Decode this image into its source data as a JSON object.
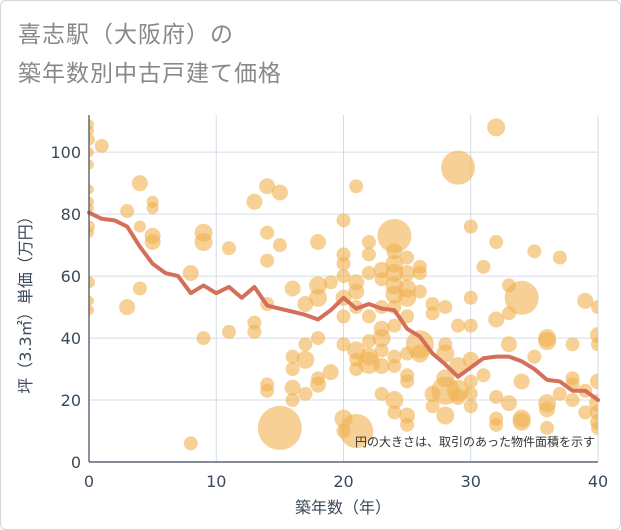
{
  "chart_data": {
    "type": "scatter",
    "title_line1": "喜志駅（大阪府）の",
    "title_line2": "築年数別中古戸建て価格",
    "xlabel": "築年数（年）",
    "ylabel": "坪（3.3㎡）単価（万円）",
    "xlim": [
      0,
      40
    ],
    "ylim": [
      0,
      112
    ],
    "xticks": [
      0,
      10,
      20,
      30,
      40
    ],
    "yticks": [
      0,
      20,
      40,
      60,
      80,
      100
    ],
    "note": "円の大きさは、取引のあった物件面積を示す",
    "colors": {
      "bubble": "#f0b352",
      "line": "#d4705a",
      "grid": "#d5dce6"
    },
    "trend": {
      "x": [
        0,
        1,
        2,
        3,
        4,
        5,
        6,
        7,
        8,
        9,
        10,
        11,
        12,
        13,
        14,
        15,
        16,
        17,
        18,
        19,
        20,
        21,
        22,
        23,
        24,
        25,
        26,
        27,
        28,
        29,
        30,
        31,
        32,
        33,
        34,
        35,
        36,
        37,
        38,
        39,
        40
      ],
      "y": [
        80.5,
        78.5,
        78,
        76,
        69.5,
        64,
        61,
        60,
        54.5,
        57,
        54.5,
        56.5,
        53,
        56.5,
        50.5,
        49.5,
        48.5,
        47.5,
        46,
        49,
        53,
        49.5,
        51,
        49.5,
        49,
        43,
        40.5,
        35,
        31.5,
        27.5,
        30.5,
        33.5,
        34,
        34,
        32.5,
        30,
        26.5,
        26,
        23,
        23,
        20
      ]
    },
    "points": [
      {
        "x": 0,
        "y": 109,
        "s": 5
      },
      {
        "x": 0,
        "y": 107,
        "s": 5
      },
      {
        "x": 0,
        "y": 104,
        "s": 6
      },
      {
        "x": 0,
        "y": 100,
        "s": 5
      },
      {
        "x": 0,
        "y": 96,
        "s": 5
      },
      {
        "x": 0,
        "y": 88,
        "s": 5
      },
      {
        "x": 0,
        "y": 84,
        "s": 5
      },
      {
        "x": 0,
        "y": 82,
        "s": 5
      },
      {
        "x": 0,
        "y": 76,
        "s": 6
      },
      {
        "x": 0,
        "y": 74,
        "s": 5
      },
      {
        "x": 0,
        "y": 58,
        "s": 6
      },
      {
        "x": 0,
        "y": 52,
        "s": 5
      },
      {
        "x": 0,
        "y": 49,
        "s": 5
      },
      {
        "x": 1,
        "y": 102,
        "s": 7
      },
      {
        "x": 3,
        "y": 81,
        "s": 7
      },
      {
        "x": 3,
        "y": 50,
        "s": 8
      },
      {
        "x": 4,
        "y": 90,
        "s": 8
      },
      {
        "x": 4,
        "y": 76,
        "s": 6
      },
      {
        "x": 4,
        "y": 56,
        "s": 7
      },
      {
        "x": 5,
        "y": 84,
        "s": 6
      },
      {
        "x": 5,
        "y": 82,
        "s": 6
      },
      {
        "x": 5,
        "y": 73,
        "s": 8
      },
      {
        "x": 5,
        "y": 71,
        "s": 8
      },
      {
        "x": 8,
        "y": 61,
        "s": 8
      },
      {
        "x": 8,
        "y": 6,
        "s": 7
      },
      {
        "x": 9,
        "y": 74,
        "s": 9
      },
      {
        "x": 9,
        "y": 71,
        "s": 9
      },
      {
        "x": 9,
        "y": 40,
        "s": 7
      },
      {
        "x": 11,
        "y": 69,
        "s": 7
      },
      {
        "x": 11,
        "y": 42,
        "s": 7
      },
      {
        "x": 13,
        "y": 84,
        "s": 8
      },
      {
        "x": 13,
        "y": 45,
        "s": 7
      },
      {
        "x": 13,
        "y": 42,
        "s": 7
      },
      {
        "x": 14,
        "y": 89,
        "s": 8
      },
      {
        "x": 14,
        "y": 74,
        "s": 7
      },
      {
        "x": 14,
        "y": 65,
        "s": 7
      },
      {
        "x": 14,
        "y": 51,
        "s": 7
      },
      {
        "x": 14,
        "y": 25,
        "s": 7
      },
      {
        "x": 14,
        "y": 23,
        "s": 7
      },
      {
        "x": 15,
        "y": 87,
        "s": 8
      },
      {
        "x": 15,
        "y": 70,
        "s": 7
      },
      {
        "x": 15,
        "y": 11,
        "s": 22
      },
      {
        "x": 16,
        "y": 56,
        "s": 8
      },
      {
        "x": 16,
        "y": 34,
        "s": 7
      },
      {
        "x": 16,
        "y": 30,
        "s": 7
      },
      {
        "x": 16,
        "y": 24,
        "s": 8
      },
      {
        "x": 16,
        "y": 20,
        "s": 7
      },
      {
        "x": 17,
        "y": 51,
        "s": 8
      },
      {
        "x": 17,
        "y": 38,
        "s": 7
      },
      {
        "x": 17,
        "y": 33,
        "s": 9
      },
      {
        "x": 17,
        "y": 22,
        "s": 7
      },
      {
        "x": 18,
        "y": 71,
        "s": 8
      },
      {
        "x": 18,
        "y": 57,
        "s": 9
      },
      {
        "x": 18,
        "y": 53,
        "s": 9
      },
      {
        "x": 18,
        "y": 40,
        "s": 7
      },
      {
        "x": 18,
        "y": 27,
        "s": 7
      },
      {
        "x": 18,
        "y": 25,
        "s": 8
      },
      {
        "x": 19,
        "y": 58,
        "s": 7
      },
      {
        "x": 19,
        "y": 29,
        "s": 8
      },
      {
        "x": 20,
        "y": 78,
        "s": 7
      },
      {
        "x": 20,
        "y": 67,
        "s": 7
      },
      {
        "x": 20,
        "y": 64,
        "s": 7
      },
      {
        "x": 20,
        "y": 60,
        "s": 7
      },
      {
        "x": 20,
        "y": 53,
        "s": 8
      },
      {
        "x": 20,
        "y": 47,
        "s": 7
      },
      {
        "x": 20,
        "y": 38,
        "s": 7
      },
      {
        "x": 20,
        "y": 14,
        "s": 9
      },
      {
        "x": 20,
        "y": 10,
        "s": 7
      },
      {
        "x": 21,
        "y": 89,
        "s": 7
      },
      {
        "x": 21,
        "y": 58,
        "s": 8
      },
      {
        "x": 21,
        "y": 55,
        "s": 8
      },
      {
        "x": 21,
        "y": 50,
        "s": 7
      },
      {
        "x": 21,
        "y": 36,
        "s": 9
      },
      {
        "x": 21,
        "y": 33,
        "s": 7
      },
      {
        "x": 21,
        "y": 30,
        "s": 7
      },
      {
        "x": 21,
        "y": 10,
        "s": 17
      },
      {
        "x": 22,
        "y": 71,
        "s": 7
      },
      {
        "x": 22,
        "y": 67,
        "s": 7
      },
      {
        "x": 22,
        "y": 61,
        "s": 7
      },
      {
        "x": 22,
        "y": 47,
        "s": 7
      },
      {
        "x": 22,
        "y": 39,
        "s": 7
      },
      {
        "x": 22,
        "y": 34,
        "s": 9
      },
      {
        "x": 22,
        "y": 32,
        "s": 11
      },
      {
        "x": 23,
        "y": 62,
        "s": 8
      },
      {
        "x": 23,
        "y": 59,
        "s": 7
      },
      {
        "x": 23,
        "y": 50,
        "s": 7
      },
      {
        "x": 23,
        "y": 43,
        "s": 8
      },
      {
        "x": 23,
        "y": 40,
        "s": 9
      },
      {
        "x": 23,
        "y": 36,
        "s": 7
      },
      {
        "x": 23,
        "y": 31,
        "s": 8
      },
      {
        "x": 23,
        "y": 22,
        "s": 7
      },
      {
        "x": 24,
        "y": 73,
        "s": 17
      },
      {
        "x": 24,
        "y": 68,
        "s": 8
      },
      {
        "x": 24,
        "y": 64,
        "s": 9
      },
      {
        "x": 24,
        "y": 61,
        "s": 9
      },
      {
        "x": 24,
        "y": 57,
        "s": 9
      },
      {
        "x": 24,
        "y": 54,
        "s": 9
      },
      {
        "x": 24,
        "y": 50,
        "s": 7
      },
      {
        "x": 24,
        "y": 44,
        "s": 7
      },
      {
        "x": 24,
        "y": 34,
        "s": 7
      },
      {
        "x": 24,
        "y": 31,
        "s": 7
      },
      {
        "x": 24,
        "y": 20,
        "s": 9
      },
      {
        "x": 24,
        "y": 16,
        "s": 7
      },
      {
        "x": 25,
        "y": 66,
        "s": 7
      },
      {
        "x": 25,
        "y": 61,
        "s": 8
      },
      {
        "x": 25,
        "y": 56,
        "s": 9
      },
      {
        "x": 25,
        "y": 53,
        "s": 9
      },
      {
        "x": 25,
        "y": 47,
        "s": 7
      },
      {
        "x": 25,
        "y": 35,
        "s": 7
      },
      {
        "x": 25,
        "y": 28,
        "s": 7
      },
      {
        "x": 25,
        "y": 26,
        "s": 7
      },
      {
        "x": 25,
        "y": 15,
        "s": 8
      },
      {
        "x": 25,
        "y": 12,
        "s": 7
      },
      {
        "x": 26,
        "y": 63,
        "s": 7
      },
      {
        "x": 26,
        "y": 61,
        "s": 7
      },
      {
        "x": 26,
        "y": 55,
        "s": 7
      },
      {
        "x": 26,
        "y": 38,
        "s": 14
      },
      {
        "x": 26,
        "y": 35,
        "s": 9
      },
      {
        "x": 27,
        "y": 51,
        "s": 7
      },
      {
        "x": 27,
        "y": 48,
        "s": 7
      },
      {
        "x": 27,
        "y": 22,
        "s": 8
      },
      {
        "x": 27,
        "y": 18,
        "s": 7
      },
      {
        "x": 28,
        "y": 50,
        "s": 7
      },
      {
        "x": 28,
        "y": 38,
        "s": 7
      },
      {
        "x": 28,
        "y": 35,
        "s": 9
      },
      {
        "x": 28,
        "y": 27,
        "s": 9
      },
      {
        "x": 28,
        "y": 23,
        "s": 14
      },
      {
        "x": 28,
        "y": 15,
        "s": 9
      },
      {
        "x": 29,
        "y": 95,
        "s": 17
      },
      {
        "x": 29,
        "y": 44,
        "s": 7
      },
      {
        "x": 29,
        "y": 31,
        "s": 9
      },
      {
        "x": 29,
        "y": 23,
        "s": 11
      },
      {
        "x": 29,
        "y": 21,
        "s": 8
      },
      {
        "x": 30,
        "y": 76,
        "s": 7
      },
      {
        "x": 30,
        "y": 53,
        "s": 7
      },
      {
        "x": 30,
        "y": 44,
        "s": 7
      },
      {
        "x": 30,
        "y": 33,
        "s": 8
      },
      {
        "x": 30,
        "y": 26,
        "s": 7
      },
      {
        "x": 30,
        "y": 22,
        "s": 7
      },
      {
        "x": 30,
        "y": 18,
        "s": 7
      },
      {
        "x": 31,
        "y": 63,
        "s": 7
      },
      {
        "x": 31,
        "y": 28,
        "s": 7
      },
      {
        "x": 32,
        "y": 108,
        "s": 9
      },
      {
        "x": 32,
        "y": 71,
        "s": 7
      },
      {
        "x": 32,
        "y": 46,
        "s": 8
      },
      {
        "x": 32,
        "y": 21,
        "s": 7
      },
      {
        "x": 32,
        "y": 14,
        "s": 7
      },
      {
        "x": 32,
        "y": 12,
        "s": 7
      },
      {
        "x": 33,
        "y": 57,
        "s": 7
      },
      {
        "x": 33,
        "y": 48,
        "s": 7
      },
      {
        "x": 33,
        "y": 38,
        "s": 8
      },
      {
        "x": 33,
        "y": 19,
        "s": 8
      },
      {
        "x": 34,
        "y": 53,
        "s": 17
      },
      {
        "x": 34,
        "y": 26,
        "s": 8
      },
      {
        "x": 34,
        "y": 14,
        "s": 9
      },
      {
        "x": 34,
        "y": 13,
        "s": 9
      },
      {
        "x": 35,
        "y": 68,
        "s": 7
      },
      {
        "x": 35,
        "y": 34,
        "s": 7
      },
      {
        "x": 36,
        "y": 40,
        "s": 9
      },
      {
        "x": 36,
        "y": 39,
        "s": 9
      },
      {
        "x": 36,
        "y": 19,
        "s": 9
      },
      {
        "x": 36,
        "y": 17,
        "s": 8
      },
      {
        "x": 36,
        "y": 11,
        "s": 7
      },
      {
        "x": 37,
        "y": 66,
        "s": 7
      },
      {
        "x": 37,
        "y": 22,
        "s": 7
      },
      {
        "x": 38,
        "y": 38,
        "s": 7
      },
      {
        "x": 38,
        "y": 27,
        "s": 7
      },
      {
        "x": 38,
        "y": 25,
        "s": 7
      },
      {
        "x": 38,
        "y": 20,
        "s": 7
      },
      {
        "x": 39,
        "y": 52,
        "s": 8
      },
      {
        "x": 39,
        "y": 23,
        "s": 7
      },
      {
        "x": 39,
        "y": 16,
        "s": 7
      },
      {
        "x": 40,
        "y": 50,
        "s": 7
      },
      {
        "x": 40,
        "y": 41,
        "s": 8
      },
      {
        "x": 40,
        "y": 38,
        "s": 7
      },
      {
        "x": 40,
        "y": 26,
        "s": 8
      },
      {
        "x": 40,
        "y": 19,
        "s": 9
      },
      {
        "x": 40,
        "y": 16,
        "s": 8
      },
      {
        "x": 40,
        "y": 13,
        "s": 8
      },
      {
        "x": 40,
        "y": 11,
        "s": 7
      }
    ]
  }
}
